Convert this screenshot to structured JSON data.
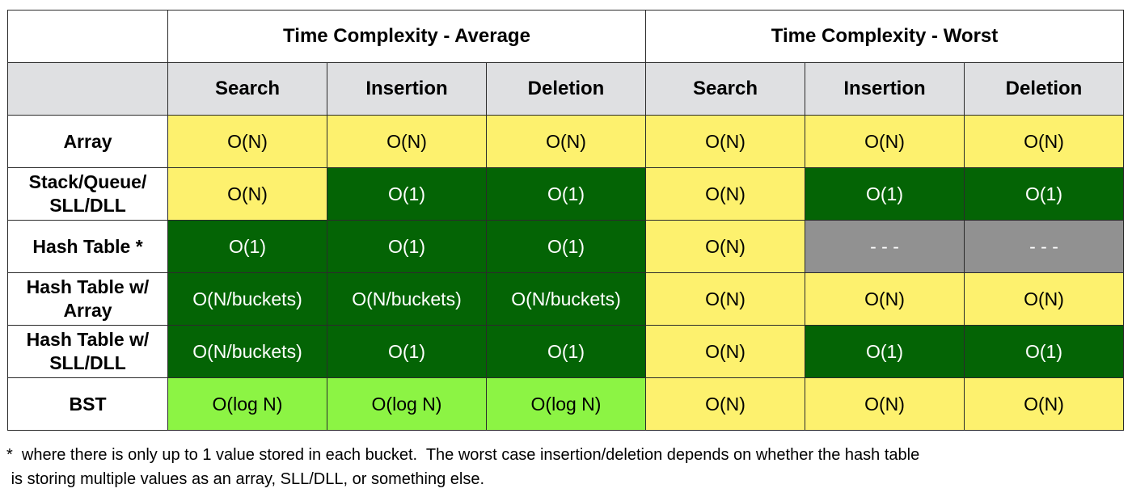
{
  "colors": {
    "yellow": "#fdf16e",
    "dark_green": "#046405",
    "light_green": "#8cf444",
    "gray": "#919191",
    "header_gray": "#dfe0e2"
  },
  "table": {
    "group_headers": [
      "Time Complexity - Average",
      "Time Complexity - Worst"
    ],
    "column_headers": [
      "Search",
      "Insertion",
      "Deletion",
      "Search",
      "Insertion",
      "Deletion"
    ],
    "rows": [
      {
        "label": "Array",
        "cells": [
          {
            "value": "O(N)",
            "color": "yellow"
          },
          {
            "value": "O(N)",
            "color": "yellow"
          },
          {
            "value": "O(N)",
            "color": "yellow"
          },
          {
            "value": "O(N)",
            "color": "yellow"
          },
          {
            "value": "O(N)",
            "color": "yellow"
          },
          {
            "value": "O(N)",
            "color": "yellow"
          }
        ]
      },
      {
        "label": "Stack/Queue/\nSLL/DLL",
        "cells": [
          {
            "value": "O(N)",
            "color": "yellow"
          },
          {
            "value": "O(1)",
            "color": "dgreen"
          },
          {
            "value": "O(1)",
            "color": "dgreen"
          },
          {
            "value": "O(N)",
            "color": "yellow"
          },
          {
            "value": "O(1)",
            "color": "dgreen"
          },
          {
            "value": "O(1)",
            "color": "dgreen"
          }
        ]
      },
      {
        "label": "Hash Table *",
        "cells": [
          {
            "value": "O(1)",
            "color": "dgreen"
          },
          {
            "value": "O(1)",
            "color": "dgreen"
          },
          {
            "value": "O(1)",
            "color": "dgreen"
          },
          {
            "value": "O(N)",
            "color": "yellow"
          },
          {
            "value": "- - -",
            "color": "gray"
          },
          {
            "value": "- - -",
            "color": "gray"
          }
        ]
      },
      {
        "label": "Hash Table w/\nArray",
        "cells": [
          {
            "value": "O(N/buckets)",
            "color": "dgreen"
          },
          {
            "value": "O(N/buckets)",
            "color": "dgreen"
          },
          {
            "value": "O(N/buckets)",
            "color": "dgreen"
          },
          {
            "value": "O(N)",
            "color": "yellow"
          },
          {
            "value": "O(N)",
            "color": "yellow"
          },
          {
            "value": "O(N)",
            "color": "yellow"
          }
        ]
      },
      {
        "label": "Hash Table w/\nSLL/DLL",
        "cells": [
          {
            "value": "O(N/buckets)",
            "color": "dgreen"
          },
          {
            "value": "O(1)",
            "color": "dgreen"
          },
          {
            "value": "O(1)",
            "color": "dgreen"
          },
          {
            "value": "O(N)",
            "color": "yellow"
          },
          {
            "value": "O(1)",
            "color": "dgreen"
          },
          {
            "value": "O(1)",
            "color": "dgreen"
          }
        ]
      },
      {
        "label": "BST",
        "cells": [
          {
            "value": "O(log N)",
            "color": "lgreen"
          },
          {
            "value": "O(log N)",
            "color": "lgreen"
          },
          {
            "value": "O(log N)",
            "color": "lgreen"
          },
          {
            "value": "O(N)",
            "color": "yellow"
          },
          {
            "value": "O(N)",
            "color": "yellow"
          },
          {
            "value": "O(N)",
            "color": "yellow"
          }
        ]
      }
    ]
  },
  "footnote": "*  where there is only up to 1 value stored in each bucket.  The worst case insertion/deletion depends on whether the hash table\n is storing multiple values as an array, SLL/DLL, or something else."
}
